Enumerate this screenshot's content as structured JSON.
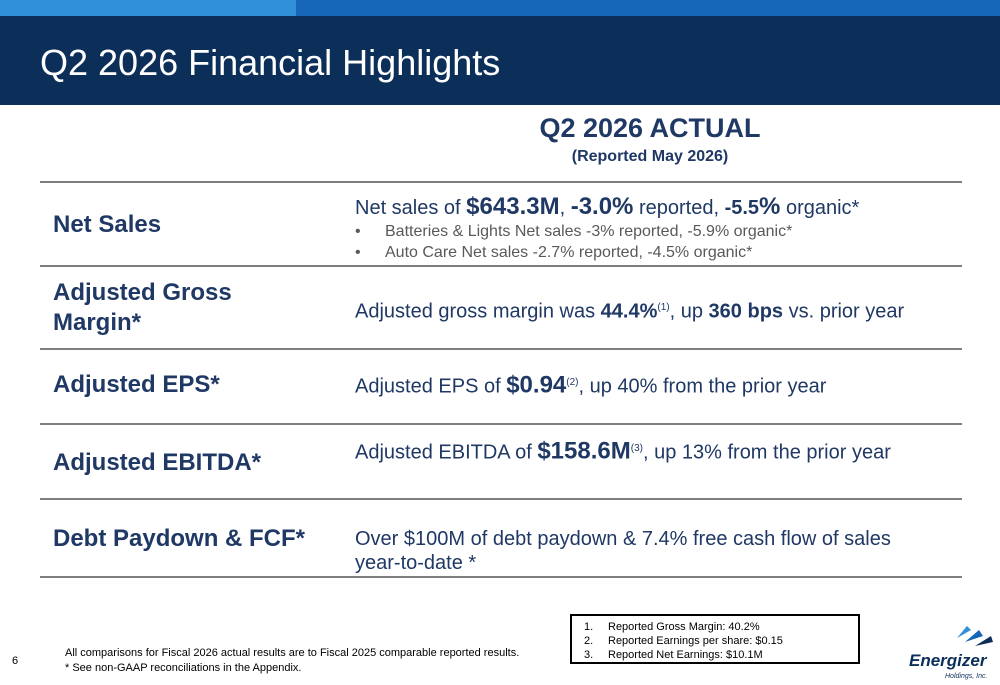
{
  "header": {
    "title": "Q2 2026 Financial Highlights"
  },
  "column": {
    "title": "Q2 2026 ACTUAL",
    "subtitle": "(Reported May 2026)"
  },
  "rows": [
    {
      "label": "Net Sales",
      "line": {
        "prefix": "Net sales of ",
        "value": "$643.3M",
        "sep": ", ",
        "pct1": "-3.0%",
        "mid": " reported, ",
        "pct2a": "-5.5",
        "pct2b": "%",
        "suffix": " organic*"
      },
      "bullets": [
        "Batteries & Lights Net sales -3% reported, -5.9% organic*",
        "Auto Care Net sales -2.7% reported, -4.5% organic*"
      ],
      "bullet_marker": "•"
    },
    {
      "label_line1": "Adjusted Gross",
      "label_line2": "Margin*",
      "line": {
        "prefix": "Adjusted gross margin was ",
        "value": "44.4%",
        "sup": "(1)",
        "mid": ", up ",
        "bps": "360 bps",
        "suffix": " vs. prior year"
      }
    },
    {
      "label": "Adjusted EPS*",
      "line": {
        "prefix": "Adjusted EPS of ",
        "value": "$0.94",
        "sup": "(2)",
        "suffix": ", up 40% from the prior year"
      }
    },
    {
      "label": "Adjusted EBITDA*",
      "line": {
        "prefix": "Adjusted EBITDA of ",
        "value": "$158.6M",
        "sup": "(3)",
        "suffix": ", up 13% from the prior year"
      }
    },
    {
      "label": "Debt Paydown & FCF*",
      "line1": "Over $100M of debt paydown & 7.4% free cash flow of sales",
      "line2": "year-to-date *"
    }
  ],
  "footnote": {
    "line1": "All comparisons for Fiscal 2026 actual results are to Fiscal 2025 comparable reported results.",
    "line2": "* See non-GAAP reconciliations in the Appendix."
  },
  "notes": [
    {
      "num": "1.",
      "text": "Reported Gross Margin: 40.2%"
    },
    {
      "num": "2.",
      "text": "Reported Earnings per share: $0.15"
    },
    {
      "num": "3.",
      "text": "Reported Net Earnings: $10.1M"
    }
  ],
  "page_number": "6",
  "logo": {
    "name": "Energizer",
    "sub": "Holdings, Inc."
  },
  "colors": {
    "header": "#0c2f5a",
    "text": "#1f3864",
    "accent": "#2f8fd8"
  }
}
